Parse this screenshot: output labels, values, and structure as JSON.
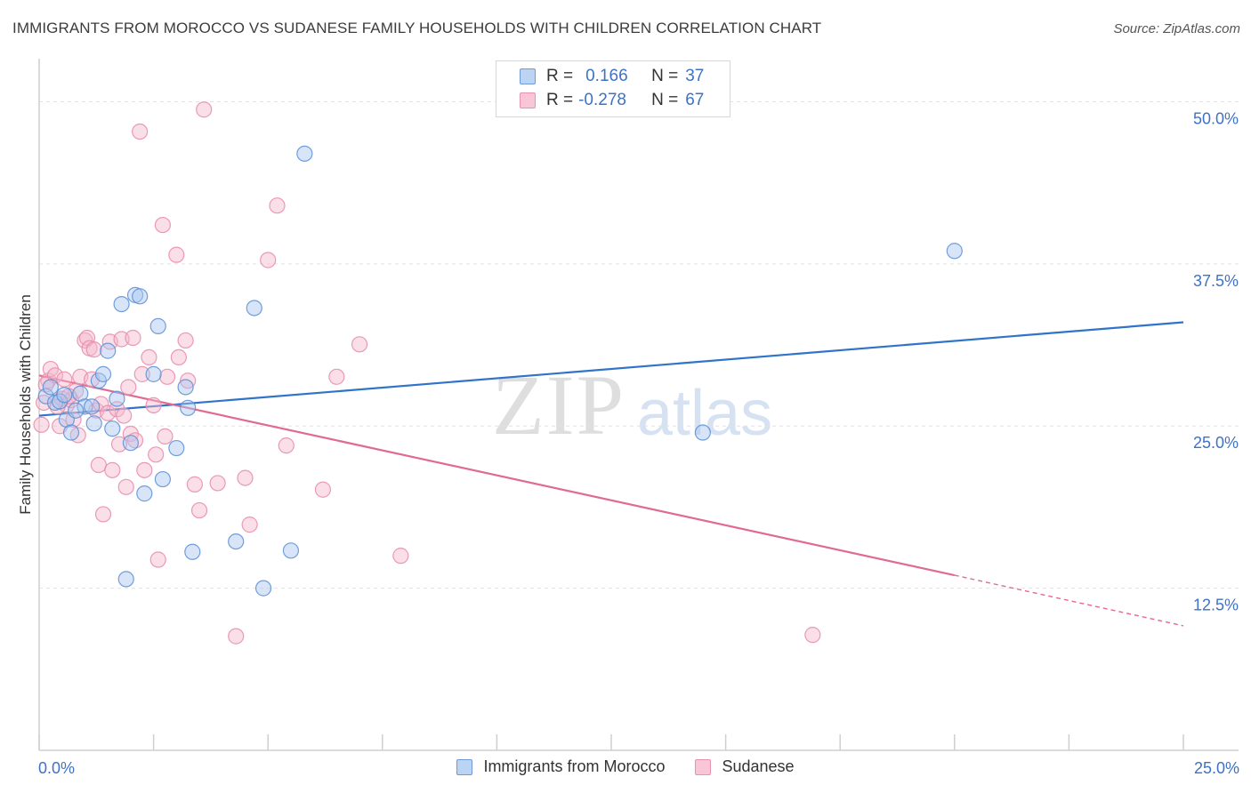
{
  "title": "IMMIGRANTS FROM MOROCCO VS SUDANESE FAMILY HOUSEHOLDS WITH CHILDREN CORRELATION CHART",
  "source": "Source: ZipAtlas.com",
  "watermark": {
    "zip": "ZIP",
    "atlas": "atlas"
  },
  "legend": {
    "rows": [
      {
        "r_label": "R =",
        "r_value": "0.166",
        "n_label": "N =",
        "n_value": "37"
      },
      {
        "r_label": "R =",
        "r_value": "-0.278",
        "n_label": "N =",
        "n_value": "67"
      }
    ]
  },
  "colors": {
    "blue_fill": "#a9c6ef",
    "blue_stroke": "#5b8ed6",
    "blue_line": "#2f74c8",
    "pink_fill": "#f5b8cc",
    "pink_stroke": "#e88aa8",
    "pink_line": "#e06a93",
    "tick_label": "#3e72c4",
    "grid": "#e2e2e2"
  },
  "chart_data": {
    "type": "scatter",
    "title": "IMMIGRANTS FROM MOROCCO VS SUDANESE FAMILY HOUSEHOLDS WITH CHILDREN CORRELATION CHART",
    "xlabel": "",
    "ylabel": "Family Households with Children",
    "xlim": [
      0,
      25
    ],
    "ylim": [
      0,
      52.5
    ],
    "x_tick_labels": [
      "0.0%",
      "25.0%"
    ],
    "y_ticks": [
      12.5,
      25.0,
      37.5,
      50.0
    ],
    "y_tick_labels": [
      "12.5%",
      "25.0%",
      "37.5%",
      "50.0%"
    ],
    "series": [
      {
        "name": "Immigrants from Morocco",
        "r": 0.166,
        "n": 37,
        "trend": {
          "x0": 0,
          "y0": 25.8,
          "x1": 25,
          "y1": 33.0
        },
        "points": [
          [
            0.15,
            27.3
          ],
          [
            0.25,
            28.0
          ],
          [
            0.35,
            26.8
          ],
          [
            0.45,
            26.9
          ],
          [
            0.55,
            27.4
          ],
          [
            0.6,
            25.5
          ],
          [
            0.7,
            24.5
          ],
          [
            0.9,
            27.5
          ],
          [
            1.0,
            26.5
          ],
          [
            1.15,
            26.5
          ],
          [
            1.2,
            25.2
          ],
          [
            1.3,
            28.5
          ],
          [
            1.4,
            29.0
          ],
          [
            1.5,
            30.8
          ],
          [
            1.6,
            24.8
          ],
          [
            1.7,
            27.1
          ],
          [
            1.8,
            34.4
          ],
          [
            1.9,
            13.2
          ],
          [
            2.0,
            23.7
          ],
          [
            2.1,
            35.1
          ],
          [
            2.2,
            35.0
          ],
          [
            2.3,
            19.8
          ],
          [
            2.5,
            29.0
          ],
          [
            2.6,
            32.7
          ],
          [
            2.7,
            20.9
          ],
          [
            3.0,
            23.3
          ],
          [
            3.2,
            28.0
          ],
          [
            3.25,
            26.4
          ],
          [
            3.35,
            15.3
          ],
          [
            4.3,
            16.1
          ],
          [
            4.7,
            34.1
          ],
          [
            4.9,
            12.5
          ],
          [
            5.5,
            15.4
          ],
          [
            5.8,
            46.0
          ],
          [
            14.5,
            24.5
          ],
          [
            20.0,
            38.5
          ],
          [
            0.8,
            26.2
          ]
        ]
      },
      {
        "name": "Sudanese",
        "r": -0.278,
        "n": 67,
        "trend": {
          "x0": 0,
          "y0": 28.9,
          "x1": 20,
          "y1": 13.5,
          "dash_to_x": 25,
          "dash_to_y": 9.6
        },
        "points": [
          [
            0.05,
            25.1
          ],
          [
            0.1,
            26.8
          ],
          [
            0.2,
            28.5
          ],
          [
            0.25,
            29.4
          ],
          [
            0.35,
            28.9
          ],
          [
            0.45,
            25.0
          ],
          [
            0.5,
            27.1
          ],
          [
            0.55,
            28.6
          ],
          [
            0.6,
            26.6
          ],
          [
            0.7,
            27.0
          ],
          [
            0.75,
            25.5
          ],
          [
            0.8,
            27.7
          ],
          [
            0.85,
            24.3
          ],
          [
            0.9,
            28.8
          ],
          [
            1.0,
            31.6
          ],
          [
            1.05,
            31.8
          ],
          [
            1.1,
            31.0
          ],
          [
            1.2,
            30.9
          ],
          [
            1.25,
            26.2
          ],
          [
            1.3,
            22.0
          ],
          [
            1.35,
            26.7
          ],
          [
            1.4,
            18.2
          ],
          [
            1.5,
            26.0
          ],
          [
            1.55,
            31.5
          ],
          [
            1.6,
            21.6
          ],
          [
            1.7,
            26.3
          ],
          [
            1.75,
            23.6
          ],
          [
            1.8,
            31.7
          ],
          [
            1.85,
            25.8
          ],
          [
            1.9,
            20.3
          ],
          [
            1.95,
            28.0
          ],
          [
            2.0,
            24.4
          ],
          [
            2.05,
            31.8
          ],
          [
            2.1,
            23.9
          ],
          [
            2.2,
            47.7
          ],
          [
            2.25,
            29.0
          ],
          [
            2.3,
            21.6
          ],
          [
            2.4,
            30.3
          ],
          [
            2.5,
            26.6
          ],
          [
            2.55,
            22.8
          ],
          [
            2.6,
            14.7
          ],
          [
            2.7,
            40.5
          ],
          [
            2.75,
            24.2
          ],
          [
            2.8,
            28.8
          ],
          [
            3.0,
            38.2
          ],
          [
            3.05,
            30.3
          ],
          [
            3.2,
            31.6
          ],
          [
            3.25,
            28.5
          ],
          [
            3.4,
            20.5
          ],
          [
            3.5,
            18.5
          ],
          [
            3.6,
            49.4
          ],
          [
            3.9,
            20.6
          ],
          [
            4.3,
            8.8
          ],
          [
            4.5,
            21.0
          ],
          [
            4.6,
            17.4
          ],
          [
            5.0,
            37.8
          ],
          [
            5.2,
            42.0
          ],
          [
            5.4,
            23.5
          ],
          [
            6.2,
            20.1
          ],
          [
            6.5,
            28.8
          ],
          [
            7.0,
            31.3
          ],
          [
            7.9,
            15.0
          ],
          [
            16.9,
            8.9
          ],
          [
            0.15,
            28.2
          ],
          [
            0.65,
            27.3
          ],
          [
            0.4,
            26.5
          ],
          [
            1.15,
            28.6
          ]
        ]
      }
    ]
  }
}
